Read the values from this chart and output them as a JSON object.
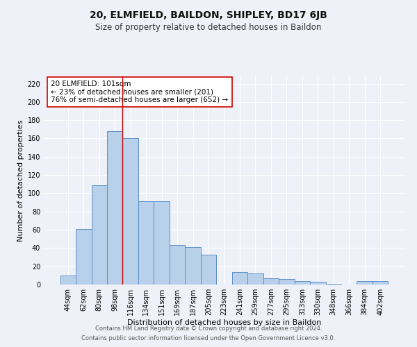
{
  "title": "20, ELMFIELD, BAILDON, SHIPLEY, BD17 6JB",
  "subtitle": "Size of property relative to detached houses in Baildon",
  "xlabel": "Distribution of detached houses by size in Baildon",
  "ylabel": "Number of detached properties",
  "categories": [
    "44sqm",
    "62sqm",
    "80sqm",
    "98sqm",
    "116sqm",
    "134sqm",
    "151sqm",
    "169sqm",
    "187sqm",
    "205sqm",
    "223sqm",
    "241sqm",
    "259sqm",
    "277sqm",
    "295sqm",
    "313sqm",
    "330sqm",
    "348sqm",
    "366sqm",
    "384sqm",
    "402sqm"
  ],
  "values": [
    10,
    61,
    109,
    168,
    160,
    91,
    91,
    43,
    41,
    33,
    0,
    14,
    12,
    7,
    6,
    4,
    3,
    1,
    0,
    4,
    4
  ],
  "bar_color": "#b8d0ea",
  "bar_edge_color": "#5b8fc9",
  "bar_width": 1.0,
  "vline_x": 3.5,
  "vline_color": "#cc0000",
  "annotation_text": "20 ELMFIELD: 101sqm\n← 23% of detached houses are smaller (201)\n76% of semi-detached houses are larger (652) →",
  "annotation_box_color": "#ffffff",
  "annotation_box_edge_color": "#cc0000",
  "ylim": [
    0,
    228
  ],
  "yticks": [
    0,
    20,
    40,
    60,
    80,
    100,
    120,
    140,
    160,
    180,
    200,
    220
  ],
  "footer1": "Contains HM Land Registry data © Crown copyright and database right 2024.",
  "footer2": "Contains public sector information licensed under the Open Government Licence v3.0.",
  "background_color": "#eef2f8",
  "grid_color": "#ffffff",
  "title_fontsize": 10,
  "subtitle_fontsize": 8.5,
  "axis_label_fontsize": 8,
  "tick_fontsize": 7,
  "footer_fontsize": 6,
  "annotation_fontsize": 7.5
}
